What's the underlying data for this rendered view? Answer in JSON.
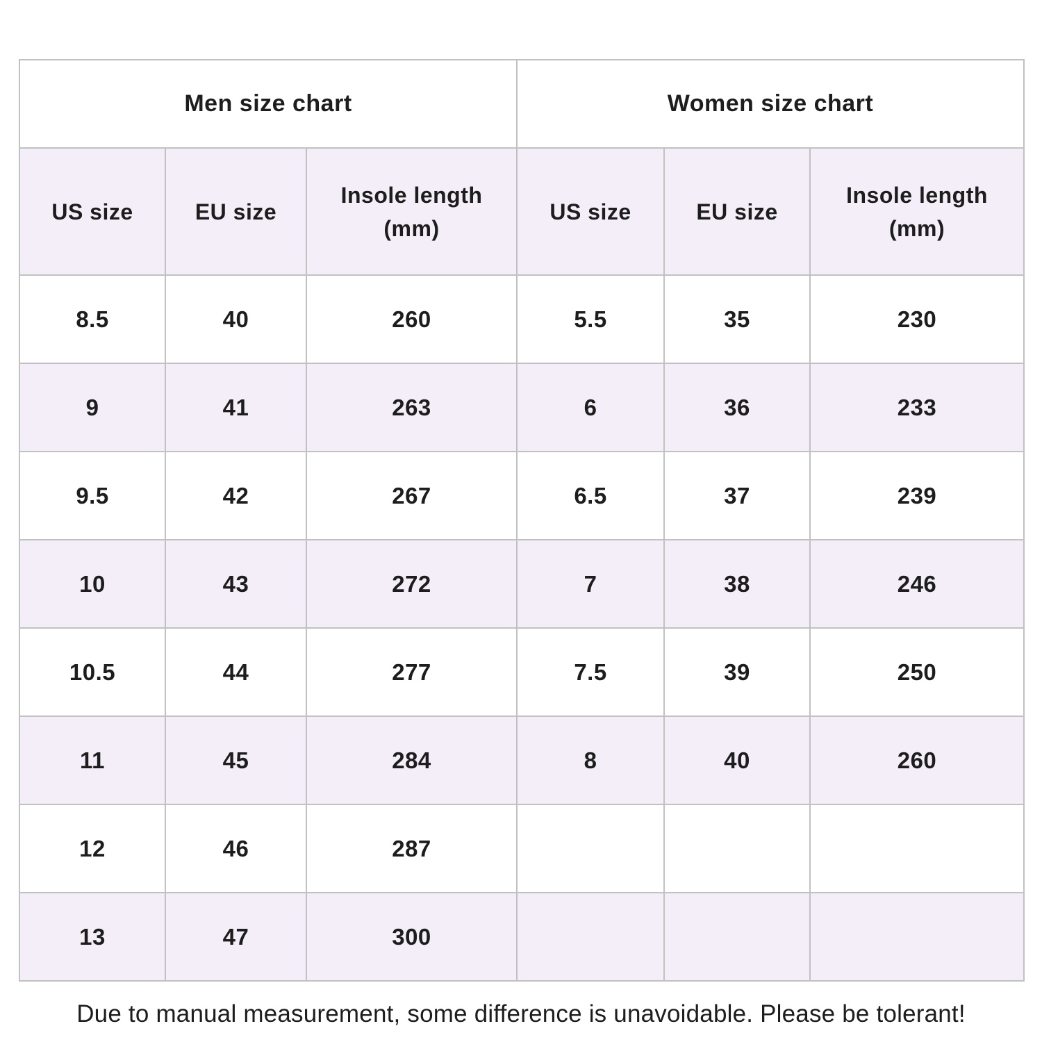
{
  "colors": {
    "row_alt": "#f4eef8",
    "border": "#c1c1c1",
    "text": "#1d1d1d"
  },
  "header_display": [
    "US size",
    "EU size",
    "Insole length\n(mm)"
  ],
  "chart_data": {
    "type": "table",
    "tables": [
      {
        "title": "Men size chart",
        "columns": [
          "US size",
          "EU size",
          "Insole length (mm)"
        ],
        "rows": [
          [
            "8.5",
            "40",
            "260"
          ],
          [
            "9",
            "41",
            "263"
          ],
          [
            "9.5",
            "42",
            "267"
          ],
          [
            "10",
            "43",
            "272"
          ],
          [
            "10.5",
            "44",
            "277"
          ],
          [
            "11",
            "45",
            "284"
          ],
          [
            "12",
            "46",
            "287"
          ],
          [
            "13",
            "47",
            "300"
          ]
        ]
      },
      {
        "title": "Women size chart",
        "columns": [
          "US size",
          "EU size",
          "Insole length (mm)"
        ],
        "rows": [
          [
            "5.5",
            "35",
            "230"
          ],
          [
            "6",
            "36",
            "233"
          ],
          [
            "6.5",
            "37",
            "239"
          ],
          [
            "7",
            "38",
            "246"
          ],
          [
            "7.5",
            "39",
            "250"
          ],
          [
            "8",
            "40",
            "260"
          ],
          [
            "",
            "",
            ""
          ],
          [
            "",
            "",
            ""
          ]
        ]
      }
    ],
    "footnote": "Due to manual measurement, some difference is unavoidable. Please be tolerant!"
  }
}
